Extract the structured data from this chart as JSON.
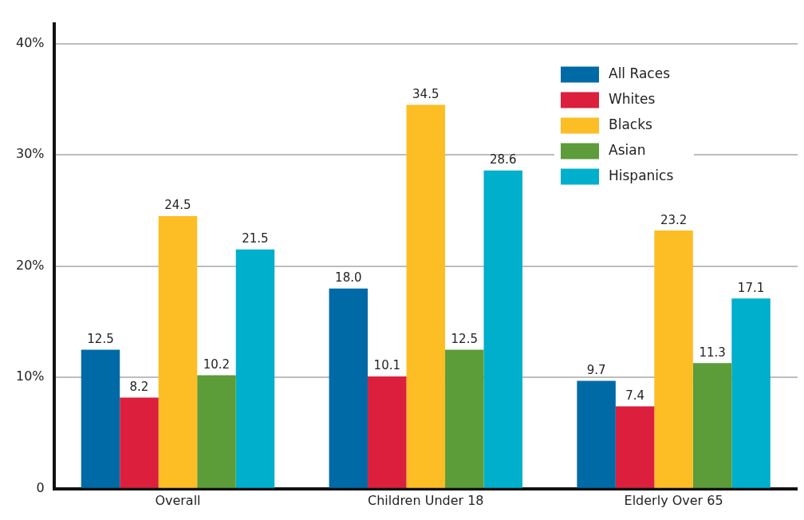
{
  "chart_data": {
    "type": "bar",
    "categories": [
      "Overall",
      "Children Under 18",
      "Elderly Over 65"
    ],
    "series": [
      {
        "name": "All Races",
        "color": "#006aa7",
        "values": [
          12.5,
          18.0,
          9.7
        ],
        "value_labels": [
          "12.5",
          "18.0",
          "9.7"
        ]
      },
      {
        "name": "Whites",
        "color": "#dc1f3c",
        "values": [
          8.2,
          10.1,
          7.4
        ],
        "value_labels": [
          "8.2",
          "10.1",
          "7.4"
        ]
      },
      {
        "name": "Blacks",
        "color": "#fdbd24",
        "values": [
          24.5,
          34.5,
          23.2
        ],
        "value_labels": [
          "24.5",
          "34.5",
          "23.2"
        ]
      },
      {
        "name": "Asian",
        "color": "#5c9c39",
        "values": [
          10.2,
          12.5,
          11.3
        ],
        "value_labels": [
          "10.2",
          "12.5",
          "11.3"
        ]
      },
      {
        "name": "Hispanics",
        "color": "#00afcb",
        "values": [
          21.5,
          28.6,
          17.1
        ],
        "value_labels": [
          "21.5",
          "28.6",
          "17.1"
        ]
      }
    ],
    "ylim": [
      0,
      41.8
    ],
    "yticks": [
      0,
      {
        "value": 10,
        "label": "10%"
      },
      {
        "value": 20,
        "label": "20%"
      },
      {
        "value": 30,
        "label": "30%"
      },
      {
        "value": 40,
        "label": "40%"
      }
    ],
    "grid": "y",
    "legend": "top right"
  }
}
